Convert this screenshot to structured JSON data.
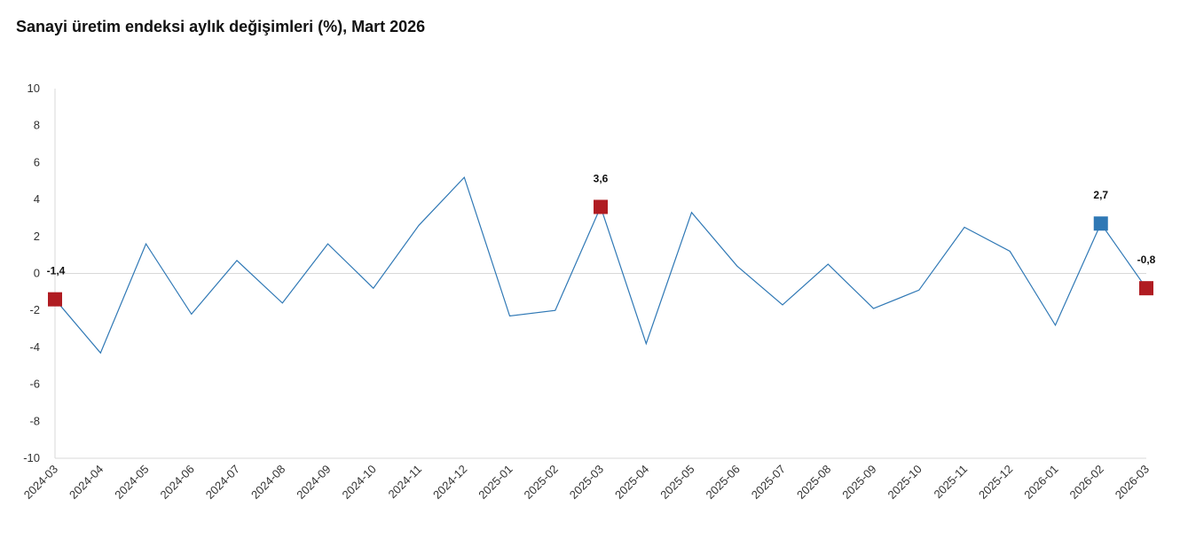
{
  "chart_data": {
    "type": "line",
    "title": "Sanayi üretim endeksi aylık değişimleri (%), Mart 2026",
    "xlabel": "",
    "ylabel": "",
    "ylim": [
      -10,
      10
    ],
    "y_ticks": [
      "10",
      "8",
      "6",
      "4",
      "2",
      "0",
      "-2",
      "-4",
      "-6",
      "-8",
      "-10"
    ],
    "grid": false,
    "categories": [
      "2024-03",
      "2024-04",
      "2024-05",
      "2024-06",
      "2024-07",
      "2024-08",
      "2024-09",
      "2024-10",
      "2024-11",
      "2024-12",
      "2025-01",
      "2025-02",
      "2025-03",
      "2025-04",
      "2025-05",
      "2025-06",
      "2025-07",
      "2025-08",
      "2025-09",
      "2025-10",
      "2025-11",
      "2025-12",
      "2026-01",
      "2026-02",
      "2026-03"
    ],
    "series": [
      {
        "values": [
          -1.4,
          -4.3,
          1.6,
          -2.2,
          0.7,
          -1.6,
          1.6,
          -0.8,
          2.6,
          5.2,
          -2.3,
          -2.0,
          3.6,
          -3.8,
          3.3,
          0.4,
          -1.7,
          0.5,
          -1.9,
          -0.9,
          2.5,
          1.2,
          -2.8,
          2.7,
          -0.8
        ],
        "color": "#2f78b5"
      }
    ],
    "highlights": [
      {
        "category": "2024-03",
        "value": -1.4,
        "label": "-1,4",
        "color": "#b01c22"
      },
      {
        "category": "2025-03",
        "value": 3.6,
        "label": "3,6",
        "color": "#b01c22"
      },
      {
        "category": "2026-02",
        "value": 2.7,
        "label": "2,7",
        "color": "#2f78b5"
      },
      {
        "category": "2026-03",
        "value": -0.8,
        "label": "-0,8",
        "color": "#b01c22"
      }
    ],
    "colors": {
      "axis": "#d9d9d9",
      "zero_line": "#d9d9d9",
      "line": "#2f78b5"
    }
  }
}
